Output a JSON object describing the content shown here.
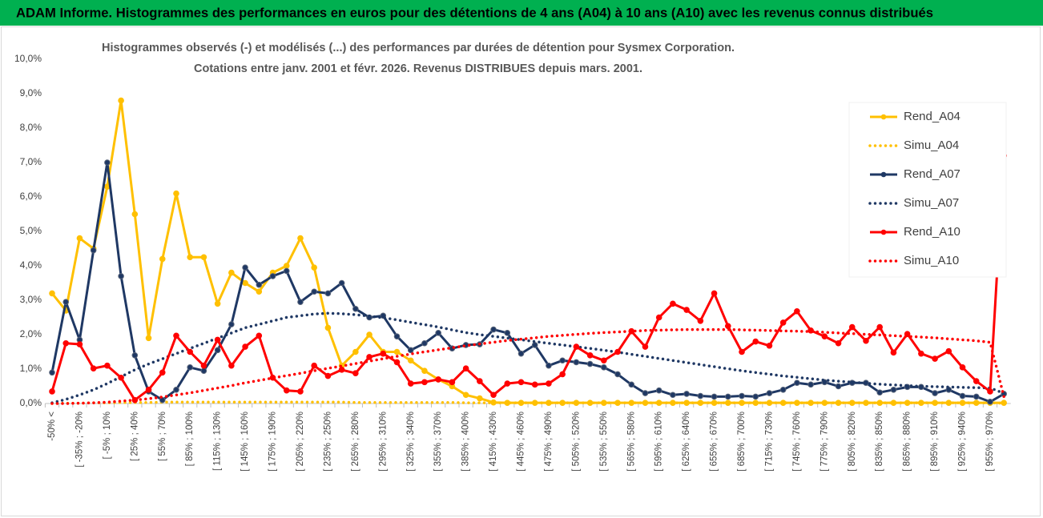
{
  "chart_data": {
    "type": "line",
    "title": "ADAM Informe. Histogrammes des performances en euros pour des détentions de 4 ans (A04) à 10 ans (A10) avec les revenus connus distribués",
    "subtitle": [
      "Histogrammes observés (-) et modélisés (...) des performances par durées de détention pour Sysmex Corporation.",
      "Cotations entre janv. 2001 et févr. 2026. Revenus DISTRIBUES depuis mars. 2001."
    ],
    "categories": [
      "-50% <",
      null,
      "[ -35% ; -20%",
      null,
      "[ -5% ; 10%",
      null,
      "[ 25% ; 40%",
      null,
      "[ 55% ; 70%",
      null,
      "[ 85% ; 100%",
      null,
      "[ 115% ; 130%",
      null,
      "[ 145% ; 160%",
      null,
      "[ 175% ; 190%",
      null,
      "[ 205% ; 220%",
      null,
      "[ 235% ; 250%",
      null,
      "[ 265% ; 280%",
      null,
      "[ 295% ; 310%",
      null,
      "[ 325% ; 340%",
      null,
      "[ 355% ; 370%",
      null,
      "[ 385% ; 400%",
      null,
      "[ 415% ; 430%",
      null,
      "[ 445% ; 460%",
      null,
      "[ 475% ; 490%",
      null,
      "[ 505% ; 520%",
      null,
      "[ 535% ; 550%",
      null,
      "[ 565% ; 580%",
      null,
      "[ 595% ; 610%",
      null,
      "[ 625% ; 640%",
      null,
      "[ 655% ; 670%",
      null,
      "[ 685% ; 700%",
      null,
      "[ 715% ; 730%",
      null,
      "[ 745% ; 760%",
      null,
      "[ 775% ; 790%",
      null,
      "[ 805% ; 820%",
      null,
      "[ 835% ; 850%",
      null,
      "[ 865% ; 880%",
      null,
      "[ 895% ; 910%",
      null,
      "[ 925% ; 940%",
      null,
      "[ 955% ; 970%",
      null
    ],
    "series": [
      {
        "name": "Rend_A04",
        "color": "#ffc000",
        "style": "solid",
        "markers": true,
        "values": [
          3.2,
          2.7,
          4.8,
          4.5,
          6.3,
          8.8,
          5.5,
          1.9,
          4.2,
          6.1,
          4.25,
          4.25,
          2.9,
          3.8,
          3.5,
          3.25,
          3.8,
          4.0,
          4.8,
          3.95,
          2.2,
          1.1,
          1.5,
          2.0,
          1.5,
          1.5,
          1.25,
          0.95,
          0.7,
          0.5,
          0.25,
          0.15,
          0.03,
          0.02,
          0.02,
          0.02,
          0.02,
          0.02,
          0.02,
          0.02,
          0.02,
          0.02,
          0.02,
          0.02,
          0.02,
          0.02,
          0.02,
          0.02,
          0.02,
          0.02,
          0.02,
          0.02,
          0.02,
          0.02,
          0.02,
          0.02,
          0.02,
          0.02,
          0.02,
          0.02,
          0.02,
          0.02,
          0.02,
          0.02,
          0.02,
          0.02,
          0.02,
          0.02,
          0.02,
          0.02
        ]
      },
      {
        "name": "Simu_A04",
        "color": "#ffc000",
        "style": "dotted",
        "markers": false,
        "values": [
          0,
          0.01,
          0.01,
          0.02,
          0.02,
          0.03,
          0.03,
          0.03,
          0.04,
          0.04,
          0.04,
          0.04,
          0.04,
          0.04,
          0.04,
          0.04,
          0.04,
          0.04,
          0.04,
          0.04,
          0.04,
          0.04,
          0.03,
          0.03,
          0.03,
          0.03,
          0.03,
          0.03,
          0.03,
          0.03,
          0.02,
          0.02,
          0.02,
          0.02,
          0.02,
          0.02,
          0.02,
          0.02,
          0.02,
          0.02,
          0.02,
          0.02,
          0.02,
          0.02,
          0.02,
          0.02,
          0.02,
          0.02,
          0.02,
          0.02,
          0.02,
          0.02,
          0.02,
          0.02,
          0.02,
          0.02,
          0.02,
          0.02,
          0.02,
          0.02,
          0.02,
          0.02,
          0.02,
          0.02,
          0.02,
          0.02,
          0.02,
          0.02,
          0.02,
          0.01
        ]
      },
      {
        "name": "Rend_A07",
        "color": "#1f3864",
        "style": "solid",
        "markers": true,
        "values": [
          0.9,
          2.95,
          1.85,
          4.45,
          7.0,
          3.7,
          1.4,
          0.35,
          0.1,
          0.4,
          1.05,
          0.95,
          1.55,
          2.3,
          3.95,
          3.45,
          3.7,
          3.85,
          2.95,
          3.25,
          3.2,
          3.5,
          2.75,
          2.5,
          2.55,
          1.95,
          1.55,
          1.75,
          2.05,
          1.6,
          1.7,
          1.72,
          2.15,
          2.05,
          1.45,
          1.7,
          1.1,
          1.25,
          1.2,
          1.15,
          1.05,
          0.85,
          0.55,
          0.3,
          0.38,
          0.25,
          0.28,
          0.22,
          0.2,
          0.2,
          0.22,
          0.2,
          0.3,
          0.4,
          0.6,
          0.55,
          0.62,
          0.5,
          0.6,
          0.6,
          0.32,
          0.4,
          0.48,
          0.48,
          0.3,
          0.4,
          0.22,
          0.2,
          0.05,
          0.28
        ]
      },
      {
        "name": "Simu_A07",
        "color": "#1f3864",
        "style": "dotted",
        "markers": false,
        "values": [
          0.02,
          0.12,
          0.25,
          0.4,
          0.58,
          0.78,
          0.98,
          1.15,
          1.3,
          1.45,
          1.6,
          1.75,
          1.9,
          2.05,
          2.2,
          2.3,
          2.4,
          2.5,
          2.55,
          2.6,
          2.62,
          2.61,
          2.58,
          2.54,
          2.49,
          2.43,
          2.36,
          2.29,
          2.22,
          2.14,
          2.06,
          2.0,
          1.95,
          1.9,
          1.85,
          1.8,
          1.75,
          1.7,
          1.65,
          1.6,
          1.55,
          1.49,
          1.43,
          1.37,
          1.31,
          1.25,
          1.19,
          1.13,
          1.07,
          1.01,
          0.95,
          0.9,
          0.85,
          0.8,
          0.76,
          0.72,
          0.68,
          0.65,
          0.62,
          0.59,
          0.56,
          0.54,
          0.52,
          0.5,
          0.49,
          0.48,
          0.47,
          0.46,
          0.45,
          0.3
        ]
      },
      {
        "name": "Rend_A10",
        "color": "#ff0000",
        "style": "solid",
        "markers": true,
        "values": [
          0.35,
          1.75,
          1.72,
          1.02,
          1.1,
          0.75,
          0.1,
          0.4,
          0.9,
          1.97,
          1.5,
          1.1,
          1.85,
          1.1,
          1.65,
          1.97,
          0.75,
          0.38,
          0.35,
          1.1,
          0.8,
          0.98,
          0.88,
          1.35,
          1.45,
          1.2,
          0.58,
          0.62,
          0.7,
          0.62,
          1.02,
          0.65,
          0.25,
          0.58,
          0.62,
          0.55,
          0.58,
          0.85,
          1.65,
          1.4,
          1.25,
          1.5,
          2.1,
          1.65,
          2.5,
          2.9,
          2.72,
          2.4,
          3.2,
          2.25,
          1.5,
          1.8,
          1.68,
          2.35,
          2.68,
          2.12,
          1.95,
          1.75,
          2.22,
          1.82,
          2.22,
          1.48,
          2.02,
          1.45,
          1.3,
          1.52,
          1.05,
          0.65,
          0.35,
          7.2
        ]
      },
      {
        "name": "Simu_A10",
        "color": "#ff0000",
        "style": "dotted",
        "markers": false,
        "values": [
          0,
          0,
          0.01,
          0.02,
          0.04,
          0.07,
          0.1,
          0.14,
          0.19,
          0.25,
          0.31,
          0.38,
          0.45,
          0.52,
          0.6,
          0.67,
          0.74,
          0.81,
          0.88,
          0.95,
          1.02,
          1.09,
          1.16,
          1.23,
          1.3,
          1.37,
          1.44,
          1.5,
          1.56,
          1.62,
          1.68,
          1.73,
          1.78,
          1.83,
          1.87,
          1.91,
          1.95,
          1.98,
          2.01,
          2.04,
          2.06,
          2.08,
          2.1,
          2.12,
          2.13,
          2.14,
          2.15,
          2.15,
          2.15,
          2.15,
          2.14,
          2.13,
          2.12,
          2.11,
          2.1,
          2.09,
          2.07,
          2.05,
          2.03,
          2.01,
          1.99,
          1.97,
          1.95,
          1.93,
          1.91,
          1.88,
          1.85,
          1.82,
          1.78,
          0.2
        ]
      }
    ],
    "ylim": [
      0,
      10
    ],
    "yticks": [
      {
        "value": 0,
        "label": "0,0%"
      },
      {
        "value": 1,
        "label": "1,0%"
      },
      {
        "value": 2,
        "label": "2,0%"
      },
      {
        "value": 3,
        "label": "3,0%"
      },
      {
        "value": 4,
        "label": "4,0%"
      },
      {
        "value": 5,
        "label": "5,0%"
      },
      {
        "value": 6,
        "label": "6,0%"
      },
      {
        "value": 7,
        "label": "7,0%"
      },
      {
        "value": 8,
        "label": "8,0%"
      },
      {
        "value": 9,
        "label": "9,0%"
      },
      {
        "value": 10,
        "label": "10,0%"
      }
    ],
    "grid": false,
    "legend": "right"
  }
}
